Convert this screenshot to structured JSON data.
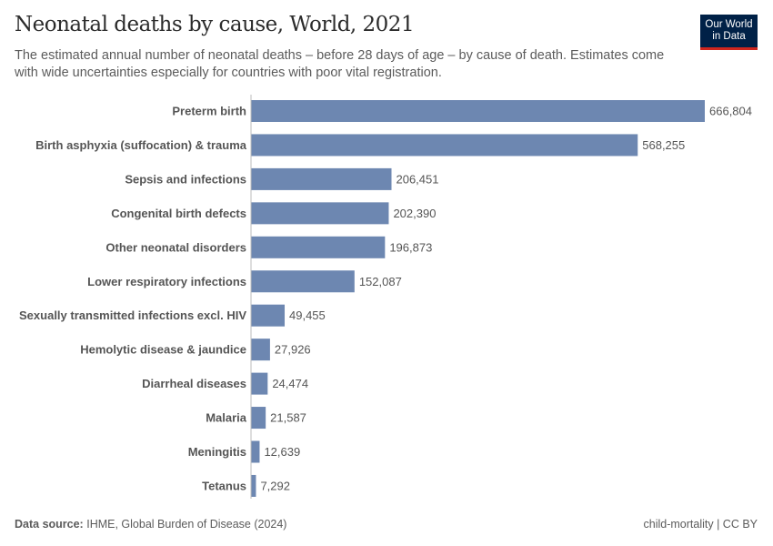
{
  "header": {
    "title": "Neonatal deaths by cause, World, 2021",
    "subtitle": "The estimated annual number of neonatal deaths – before 28 days of age – by cause of death. Estimates come with wide uncertainties especially for countries with poor vital registration.",
    "logo_line1": "Our World",
    "logo_line2": "in Data"
  },
  "footer": {
    "source_label": "Data source:",
    "source": "IHME, Global Burden of Disease (2024)",
    "license": "child-mortality | CC BY"
  },
  "chart_data": {
    "type": "bar",
    "orientation": "horizontal",
    "title": "Neonatal deaths by cause, World, 2021",
    "categories": [
      "Preterm birth",
      "Birth asphyxia (suffocation) & trauma",
      "Sepsis and infections",
      "Congenital birth defects",
      "Other neonatal disorders",
      "Lower respiratory infections",
      "Sexually transmitted infections excl. HIV",
      "Hemolytic disease & jaundice",
      "Diarrheal diseases",
      "Malaria",
      "Meningitis",
      "Tetanus"
    ],
    "values": [
      666804,
      568255,
      206451,
      202390,
      196873,
      152087,
      49455,
      27926,
      24474,
      21587,
      12639,
      7292
    ],
    "labels": [
      "666,804",
      "568,255",
      "206,451",
      "202,390",
      "196,873",
      "152,087",
      "49,455",
      "27,926",
      "24,474",
      "21,587",
      "12,639",
      "7,292"
    ],
    "xlim": [
      0,
      666804
    ],
    "grid": false,
    "legend": "none",
    "bar_color": "#6d87b1"
  }
}
